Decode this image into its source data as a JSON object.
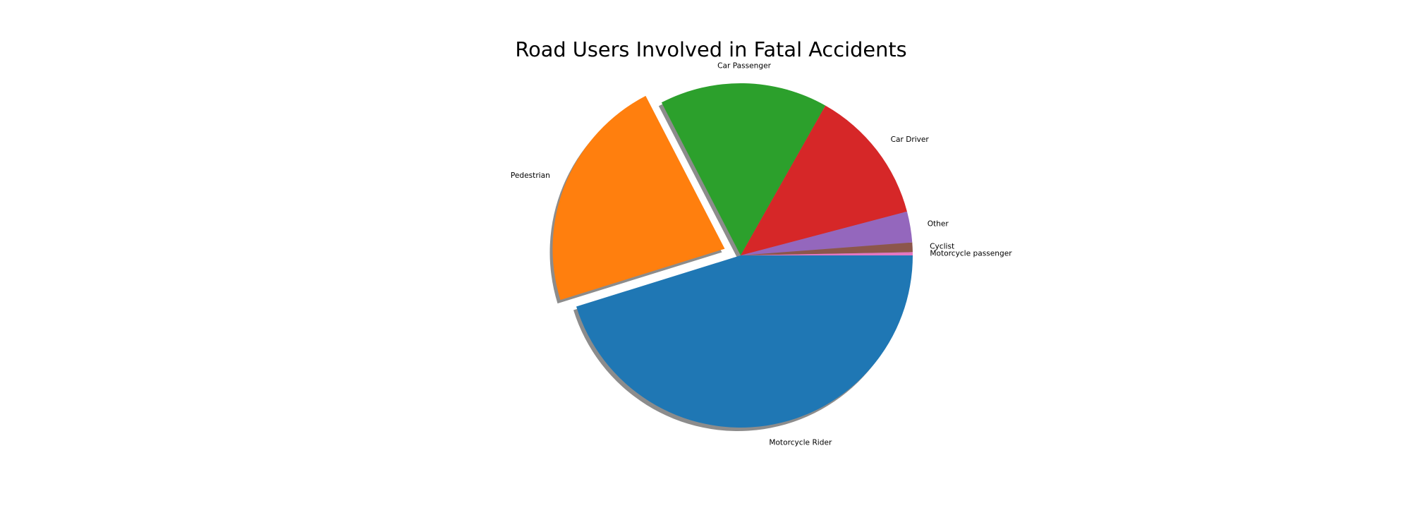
{
  "chart_data": {
    "type": "pie",
    "title": "Road Users Involved in Fatal Accidents",
    "start_angle_deg": 0,
    "direction": "clockwise",
    "shadow": true,
    "legend": "none",
    "slices": [
      {
        "label": "Motorcycle Rider",
        "value": 45.2,
        "color": "#1f77b4",
        "explode": 0
      },
      {
        "label": "Pedestrian",
        "value": 22.2,
        "color": "#ff7f0e",
        "explode": 0.1
      },
      {
        "label": "Car Passenger",
        "value": 15.8,
        "color": "#2ca02c",
        "explode": 0
      },
      {
        "label": "Car Driver",
        "value": 12.7,
        "color": "#d62728",
        "explode": 0
      },
      {
        "label": "Other",
        "value": 2.9,
        "color": "#9467bd",
        "explode": 0
      },
      {
        "label": "Cyclist",
        "value": 0.9,
        "color": "#8c564b",
        "explode": 0
      },
      {
        "label": "Motorcycle passenger",
        "value": 0.3,
        "color": "#e377c2",
        "explode": 0
      }
    ]
  }
}
